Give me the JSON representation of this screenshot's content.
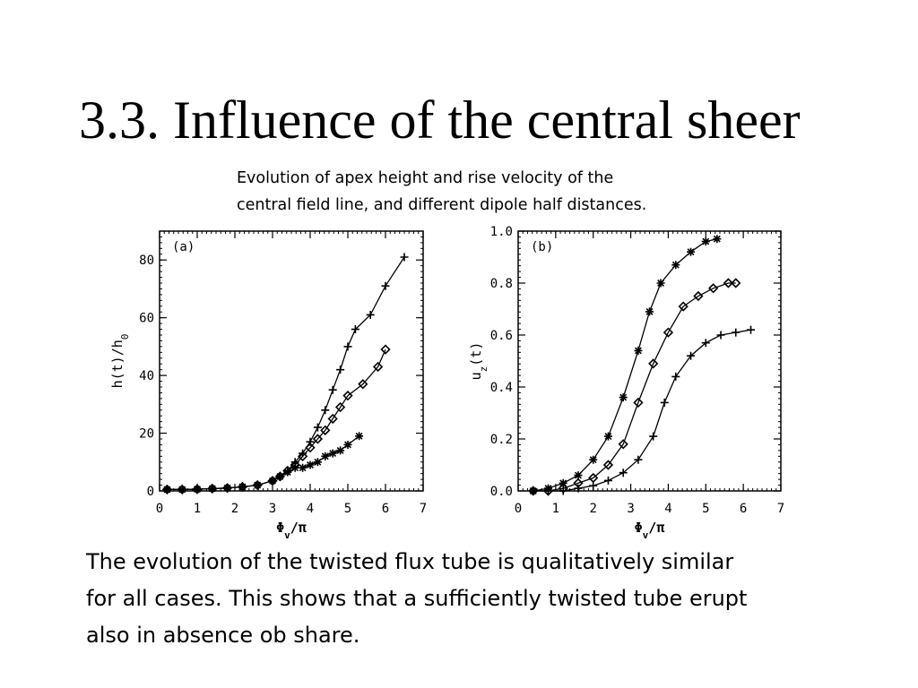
{
  "slide": {
    "title": "3.3. Influence of the central sheer",
    "caption": [
      "Evolution of apex height and rise velocity of the",
      "central field line, and different dipole half distances."
    ],
    "body": [
      "The evolution of the twisted flux tube is qualitatively similar",
      "for all cases. This shows that a sufficiently twisted tube erupt",
      "also in absence ob share."
    ]
  },
  "chart_data": [
    {
      "type": "line",
      "panel_label": "(a)",
      "xlabel": "Φ_v/π",
      "ylabel": "h(t)/h_0",
      "xlim": [
        0,
        7
      ],
      "ylim": [
        0,
        90
      ],
      "xticks": [
        0,
        1,
        2,
        3,
        4,
        5,
        6,
        7
      ],
      "yticks": [
        0,
        20,
        40,
        60,
        80
      ],
      "xtick_labels": [
        "0",
        "1",
        "2",
        "3",
        "4",
        "5",
        "6",
        "7"
      ],
      "ytick_labels": [
        "0",
        "20",
        "40",
        "60",
        "80"
      ],
      "series": [
        {
          "marker": "plus",
          "x": [
            0.2,
            0.6,
            1.0,
            1.4,
            1.8,
            2.2,
            2.6,
            3.0,
            3.2,
            3.4,
            3.6,
            3.8,
            4.0,
            4.2,
            4.4,
            4.6,
            4.8,
            5.0,
            5.2,
            5.6,
            6.0,
            6.5
          ],
          "y": [
            0.5,
            0.5,
            0.6,
            0.8,
            1.0,
            1.4,
            2.0,
            3.5,
            5,
            7,
            10,
            13,
            17,
            22,
            28,
            35,
            42,
            50,
            56,
            61,
            71,
            81
          ]
        },
        {
          "marker": "diamond",
          "x": [
            0.2,
            0.6,
            1.0,
            1.4,
            1.8,
            2.2,
            2.6,
            3.0,
            3.2,
            3.4,
            3.6,
            3.8,
            4.0,
            4.2,
            4.4,
            4.6,
            4.8,
            5.0,
            5.4,
            5.8,
            6.0
          ],
          "y": [
            0.5,
            0.5,
            0.6,
            0.8,
            1.0,
            1.4,
            2.0,
            3.5,
            5,
            7,
            9,
            12,
            15,
            18,
            21,
            25,
            29,
            33,
            37,
            43,
            49
          ]
        },
        {
          "marker": "asterisk",
          "x": [
            0.2,
            0.6,
            1.0,
            1.4,
            1.8,
            2.2,
            2.6,
            3.0,
            3.2,
            3.4,
            3.6,
            3.8,
            4.0,
            4.2,
            4.4,
            4.6,
            4.8,
            5.0,
            5.3
          ],
          "y": [
            0.5,
            0.5,
            0.6,
            0.8,
            1.0,
            1.4,
            2.0,
            3.5,
            5,
            6.5,
            8,
            8,
            9,
            10,
            12,
            13,
            14,
            16,
            19
          ]
        }
      ]
    },
    {
      "type": "line",
      "panel_label": "(b)",
      "xlabel": "Φ_v/π",
      "ylabel": "u_z(t)",
      "xlim": [
        0,
        7
      ],
      "ylim": [
        0,
        1.0
      ],
      "xticks": [
        0,
        1,
        2,
        3,
        4,
        5,
        6,
        7
      ],
      "yticks": [
        0.0,
        0.2,
        0.4,
        0.6,
        0.8,
        1.0
      ],
      "xtick_labels": [
        "0",
        "1",
        "2",
        "3",
        "4",
        "5",
        "6",
        "7"
      ],
      "ytick_labels": [
        "0.0",
        "0.2",
        "0.4",
        "0.6",
        "0.8",
        "1.0"
      ],
      "series": [
        {
          "marker": "asterisk",
          "x": [
            0.4,
            0.8,
            1.2,
            1.6,
            2.0,
            2.4,
            2.8,
            3.2,
            3.5,
            3.8,
            4.2,
            4.6,
            5.0,
            5.3
          ],
          "y": [
            0.0,
            0.01,
            0.03,
            0.06,
            0.12,
            0.21,
            0.36,
            0.54,
            0.69,
            0.8,
            0.87,
            0.92,
            0.96,
            0.97
          ]
        },
        {
          "marker": "diamond",
          "x": [
            0.4,
            0.8,
            1.2,
            1.6,
            2.0,
            2.4,
            2.8,
            3.2,
            3.6,
            4.0,
            4.4,
            4.8,
            5.2,
            5.6,
            5.8
          ],
          "y": [
            0.0,
            0.0,
            0.01,
            0.03,
            0.05,
            0.1,
            0.18,
            0.34,
            0.49,
            0.61,
            0.71,
            0.75,
            0.78,
            0.8,
            0.8
          ]
        },
        {
          "marker": "plus",
          "x": [
            0.4,
            0.8,
            1.2,
            1.6,
            2.0,
            2.4,
            2.8,
            3.2,
            3.6,
            3.9,
            4.2,
            4.6,
            5.0,
            5.4,
            5.8,
            6.2
          ],
          "y": [
            0.0,
            0.0,
            0.0,
            0.01,
            0.02,
            0.04,
            0.07,
            0.12,
            0.21,
            0.34,
            0.44,
            0.52,
            0.57,
            0.6,
            0.61,
            0.62
          ]
        }
      ]
    }
  ]
}
